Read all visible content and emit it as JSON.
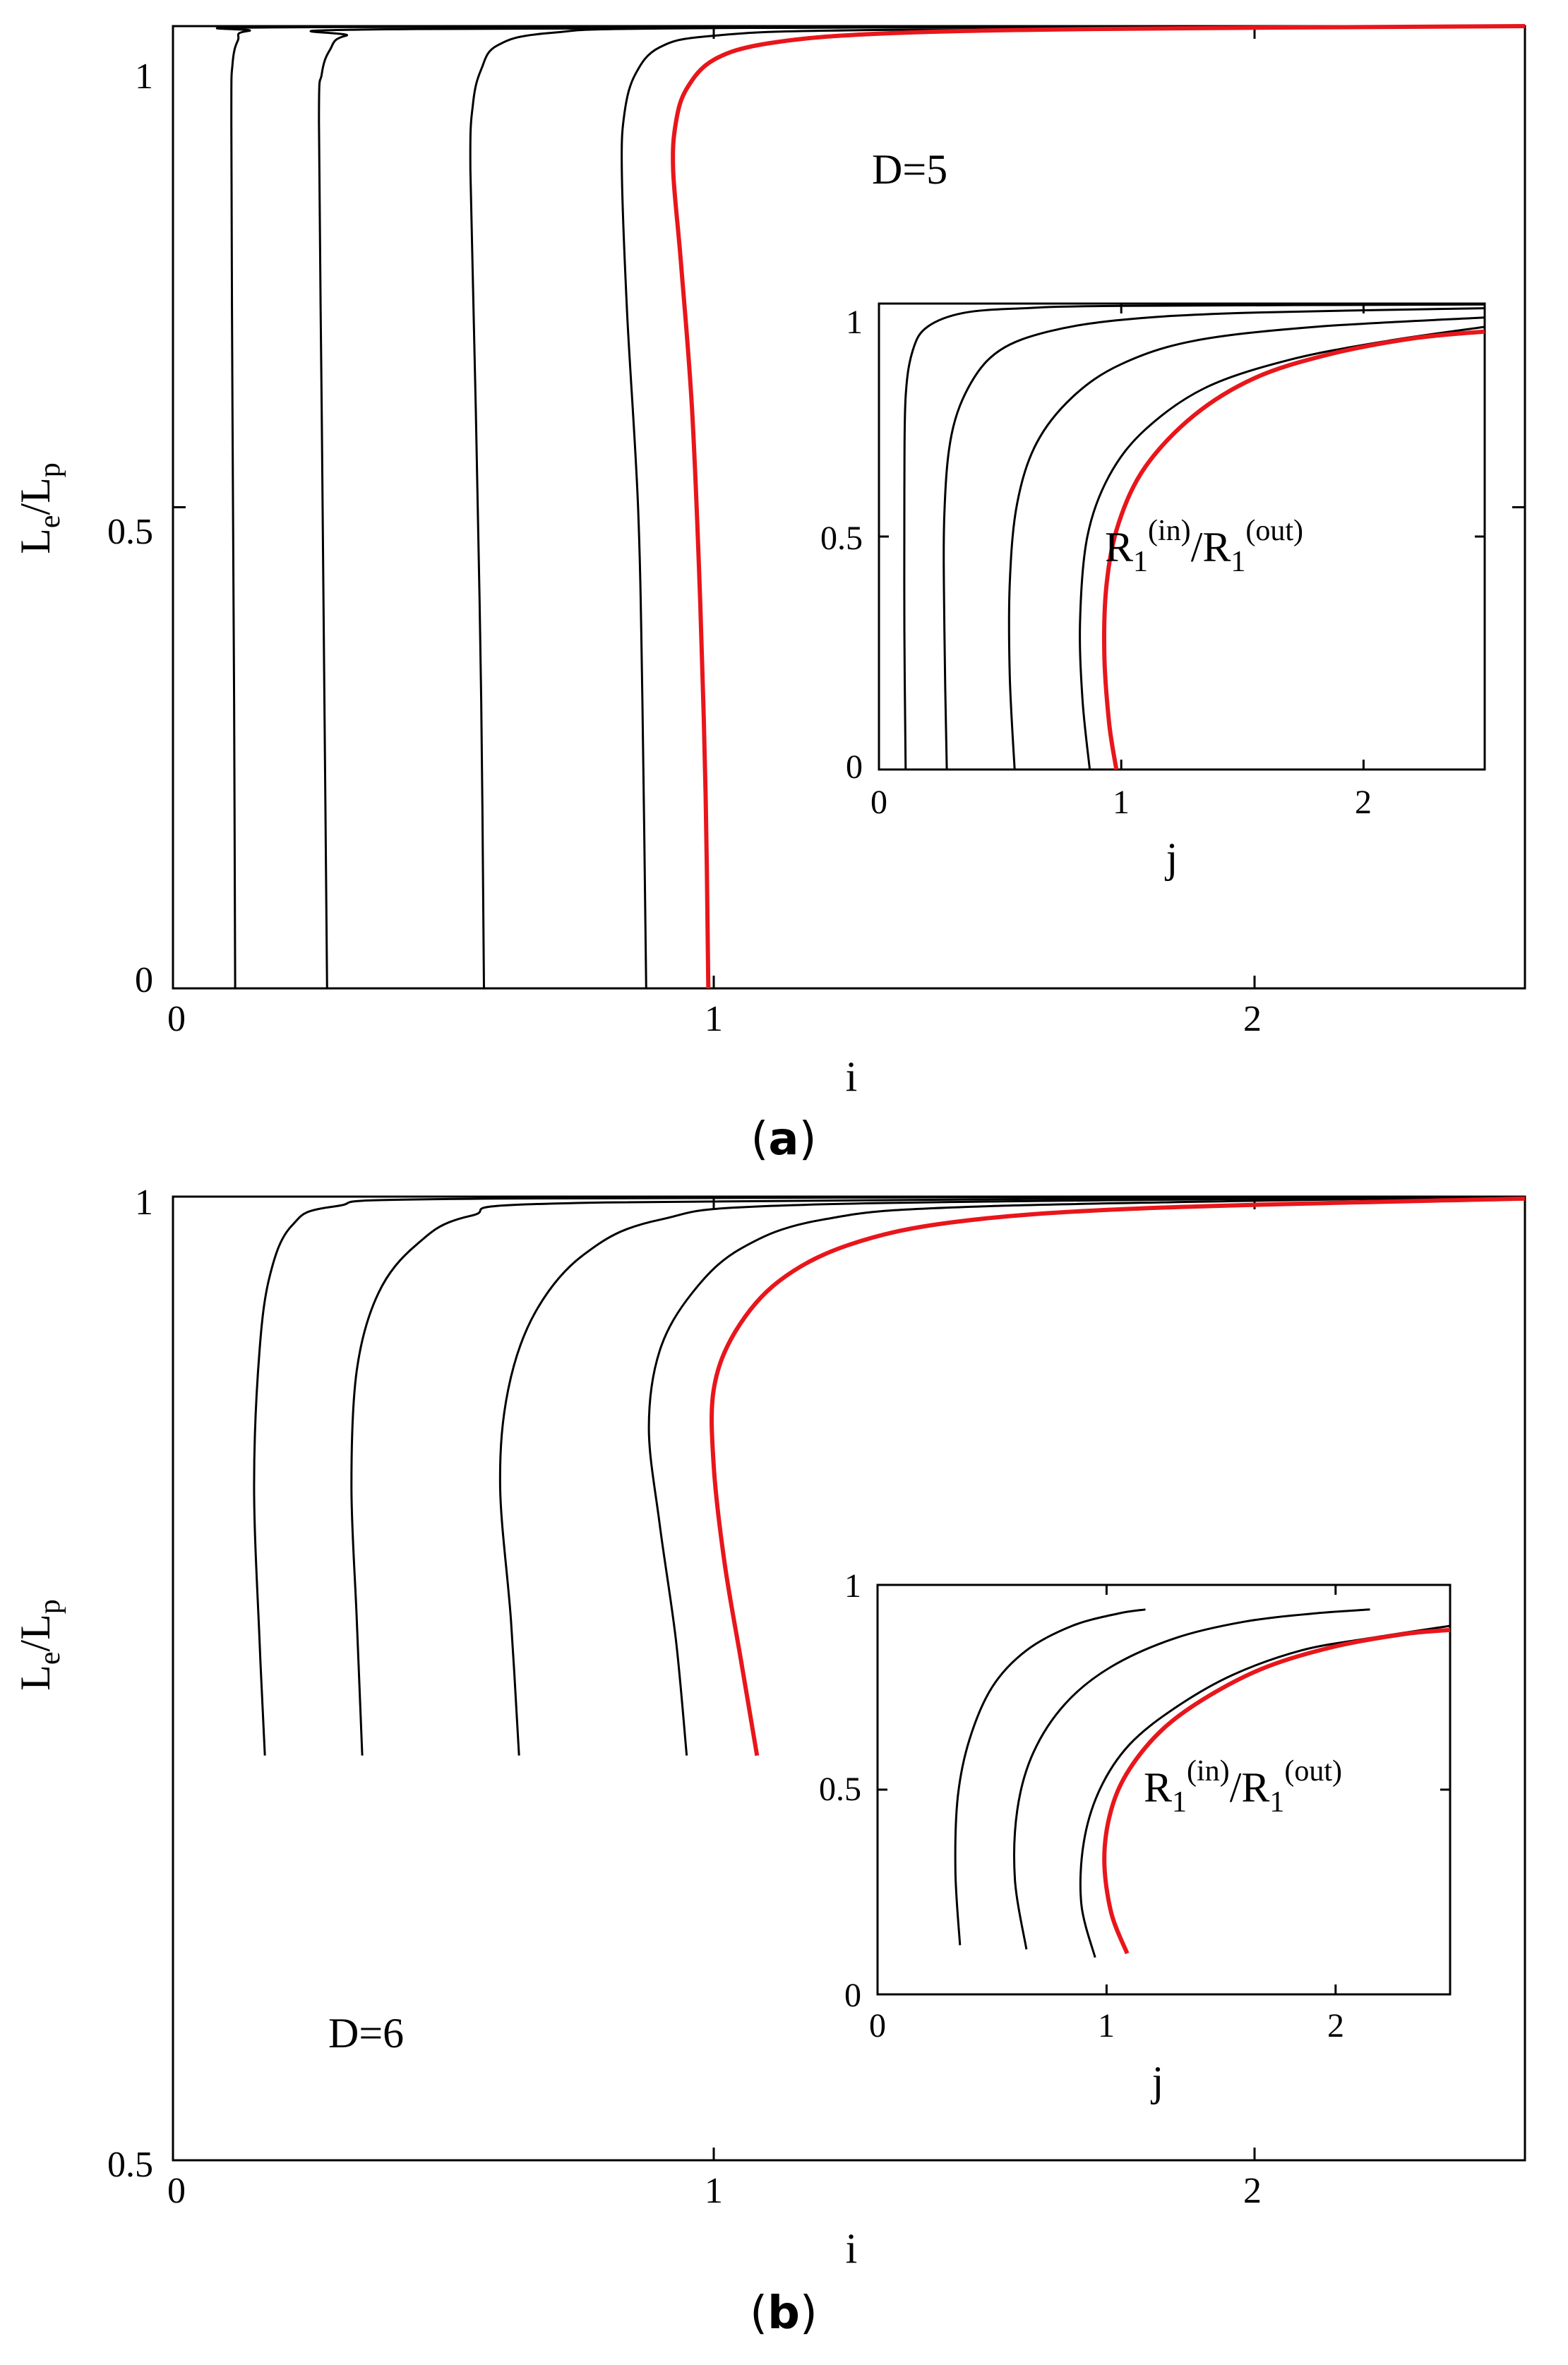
{
  "panels": [
    {
      "caption_letter": "a",
      "annotation": "D=5",
      "main": {
        "type": "line",
        "xlabel": "i",
        "ylabel_main": "L",
        "ylabel_sub1": "e",
        "ylabel_mid": "/L",
        "ylabel_sub2": "p",
        "xlim": [
          0,
          2.5
        ],
        "ylim": [
          0,
          1
        ],
        "xticks": [
          0,
          1,
          2
        ],
        "yticks": [
          0,
          0.5,
          1
        ],
        "xtick_labels": [
          "0",
          "1",
          "2"
        ],
        "ytick_labels": [
          "0",
          "0.5",
          "1"
        ],
        "grid": false,
        "series": [
          {
            "color": "#000000",
            "points": [
              [
                0.115,
                0
              ],
              [
                0.113,
                0.3
              ],
              [
                0.11,
                0.6
              ],
              [
                0.108,
                0.9
              ],
              [
                0.11,
                0.96
              ],
              [
                0.12,
                0.985
              ],
              [
                0.14,
                0.995
              ],
              [
                0.3,
                0.999
              ],
              [
                2.5,
                1
              ]
            ]
          },
          {
            "color": "#000000",
            "points": [
              [
                0.285,
                0
              ],
              [
                0.28,
                0.3
              ],
              [
                0.275,
                0.6
              ],
              [
                0.27,
                0.9
              ],
              [
                0.275,
                0.95
              ],
              [
                0.29,
                0.975
              ],
              [
                0.32,
                0.99
              ],
              [
                0.45,
                0.997
              ],
              [
                2.5,
                1
              ]
            ]
          },
          {
            "color": "#000000",
            "points": [
              [
                0.575,
                0
              ],
              [
                0.57,
                0.3
              ],
              [
                0.56,
                0.6
              ],
              [
                0.55,
                0.85
              ],
              [
                0.555,
                0.92
              ],
              [
                0.57,
                0.955
              ],
              [
                0.6,
                0.98
              ],
              [
                0.7,
                0.993
              ],
              [
                1.0,
                0.998
              ],
              [
                2.5,
                1
              ]
            ]
          },
          {
            "color": "#000000",
            "points": [
              [
                0.875,
                0
              ],
              [
                0.868,
                0.3
              ],
              [
                0.86,
                0.5
              ],
              [
                0.84,
                0.7
              ],
              [
                0.83,
                0.85
              ],
              [
                0.835,
                0.91
              ],
              [
                0.855,
                0.95
              ],
              [
                0.9,
                0.978
              ],
              [
                1.0,
                0.99
              ],
              [
                1.3,
                0.996
              ],
              [
                2.5,
                1
              ]
            ]
          },
          {
            "color": "#e8161b",
            "points": [
              [
                0.99,
                0
              ],
              [
                0.985,
                0.2
              ],
              [
                0.975,
                0.4
              ],
              [
                0.96,
                0.6
              ],
              [
                0.94,
                0.75
              ],
              [
                0.925,
                0.85
              ],
              [
                0.93,
                0.9
              ],
              [
                0.95,
                0.935
              ],
              [
                1.0,
                0.965
              ],
              [
                1.1,
                0.982
              ],
              [
                1.3,
                0.992
              ],
              [
                1.7,
                0.997
              ],
              [
                2.5,
                1
              ]
            ]
          }
        ]
      },
      "inset": {
        "type": "line",
        "xlabel": "j",
        "label_main": "R",
        "label_sub": "1",
        "label_sup1": "(in)",
        "label_mid": "/R",
        "label_sup2": "(out)",
        "xlim": [
          0,
          2.5
        ],
        "ylim": [
          0,
          1
        ],
        "xticks": [
          0,
          1,
          2
        ],
        "yticks": [
          0,
          0.5,
          1
        ],
        "xtick_labels": [
          "0",
          "1",
          "2"
        ],
        "ytick_labels": [
          "0",
          "0.5",
          "1"
        ],
        "series": [
          {
            "color": "#000000",
            "points": [
              [
                0.11,
                0
              ],
              [
                0.105,
                0.3
              ],
              [
                0.105,
                0.6
              ],
              [
                0.11,
                0.8
              ],
              [
                0.14,
                0.9
              ],
              [
                0.2,
                0.95
              ],
              [
                0.35,
                0.98
              ],
              [
                0.6,
                0.99
              ],
              [
                1.0,
                0.995
              ],
              [
                2.5,
                0.998
              ]
            ]
          },
          {
            "color": "#000000",
            "points": [
              [
                0.28,
                0
              ],
              [
                0.27,
                0.3
              ],
              [
                0.27,
                0.55
              ],
              [
                0.3,
                0.72
              ],
              [
                0.38,
                0.83
              ],
              [
                0.5,
                0.9
              ],
              [
                0.7,
                0.94
              ],
              [
                1.0,
                0.965
              ],
              [
                1.5,
                0.98
              ],
              [
                2.5,
                0.99
              ]
            ]
          },
          {
            "color": "#000000",
            "points": [
              [
                0.56,
                0
              ],
              [
                0.54,
                0.2
              ],
              [
                0.54,
                0.4
              ],
              [
                0.57,
                0.57
              ],
              [
                0.65,
                0.7
              ],
              [
                0.8,
                0.8
              ],
              [
                1.0,
                0.87
              ],
              [
                1.3,
                0.92
              ],
              [
                1.8,
                0.95
              ],
              [
                2.5,
                0.97
              ]
            ]
          },
          {
            "color": "#000000",
            "points": [
              [
                0.87,
                0
              ],
              [
                0.84,
                0.15
              ],
              [
                0.83,
                0.32
              ],
              [
                0.86,
                0.5
              ],
              [
                0.95,
                0.63
              ],
              [
                1.1,
                0.73
              ],
              [
                1.35,
                0.82
              ],
              [
                1.7,
                0.88
              ],
              [
                2.1,
                0.92
              ],
              [
                2.5,
                0.95
              ]
            ]
          },
          {
            "color": "#e8161b",
            "points": [
              [
                0.98,
                0
              ],
              [
                0.95,
                0.1
              ],
              [
                0.93,
                0.25
              ],
              [
                0.94,
                0.4
              ],
              [
                0.99,
                0.53
              ],
              [
                1.1,
                0.65
              ],
              [
                1.3,
                0.76
              ],
              [
                1.55,
                0.84
              ],
              [
                1.85,
                0.89
              ],
              [
                2.2,
                0.925
              ],
              [
                2.5,
                0.94
              ]
            ]
          }
        ]
      }
    },
    {
      "caption_letter": "b",
      "annotation": "D=6",
      "main": {
        "type": "line",
        "xlabel": "i",
        "ylabel_main": "L",
        "ylabel_sub1": "e",
        "ylabel_mid": "/L",
        "ylabel_sub2": "p",
        "xlim": [
          0,
          2.5
        ],
        "ylim": [
          0.5,
          1
        ],
        "xticks": [
          0,
          1,
          2
        ],
        "yticks": [
          0.5,
          1
        ],
        "xtick_labels": [
          "0",
          "1",
          "2"
        ],
        "ytick_labels": [
          "0.5",
          "1"
        ],
        "grid": false,
        "series": [
          {
            "color": "#000000",
            "points": [
              [
                0.17,
                0.71
              ],
              [
                0.16,
                0.77
              ],
              [
                0.15,
                0.85
              ],
              [
                0.16,
                0.92
              ],
              [
                0.18,
                0.96
              ],
              [
                0.22,
                0.985
              ],
              [
                0.3,
                0.995
              ],
              [
                0.6,
                0.999
              ],
              [
                2.5,
                1
              ]
            ]
          },
          {
            "color": "#000000",
            "points": [
              [
                0.35,
                0.71
              ],
              [
                0.34,
                0.78
              ],
              [
                0.33,
                0.85
              ],
              [
                0.34,
                0.91
              ],
              [
                0.38,
                0.95
              ],
              [
                0.45,
                0.975
              ],
              [
                0.55,
                0.99
              ],
              [
                0.8,
                0.997
              ],
              [
                2.5,
                1
              ]
            ]
          },
          {
            "color": "#000000",
            "points": [
              [
                0.64,
                0.71
              ],
              [
                0.625,
                0.78
              ],
              [
                0.605,
                0.85
              ],
              [
                0.62,
                0.9
              ],
              [
                0.67,
                0.94
              ],
              [
                0.76,
                0.97
              ],
              [
                0.9,
                0.988
              ],
              [
                1.2,
                0.996
              ],
              [
                2.5,
                1
              ]
            ]
          },
          {
            "color": "#000000",
            "points": [
              [
                0.95,
                0.71
              ],
              [
                0.93,
                0.77
              ],
              [
                0.9,
                0.83
              ],
              [
                0.88,
                0.88
              ],
              [
                0.9,
                0.92
              ],
              [
                0.96,
                0.95
              ],
              [
                1.05,
                0.973
              ],
              [
                1.2,
                0.988
              ],
              [
                1.5,
                0.995
              ],
              [
                2.5,
                1
              ]
            ]
          },
          {
            "color": "#e8161b",
            "points": [
              [
                1.08,
                0.71
              ],
              [
                1.05,
                0.76
              ],
              [
                1.02,
                0.81
              ],
              [
                1.0,
                0.86
              ],
              [
                1.0,
                0.9
              ],
              [
                1.04,
                0.93
              ],
              [
                1.12,
                0.956
              ],
              [
                1.25,
                0.975
              ],
              [
                1.45,
                0.987
              ],
              [
                1.8,
                0.994
              ],
              [
                2.5,
                0.999
              ]
            ]
          }
        ]
      },
      "inset": {
        "type": "line",
        "xlabel": "j",
        "label_main": "R",
        "label_sub": "1",
        "label_sup1": "(in)",
        "label_mid": "/R",
        "label_sup2": "(out)",
        "xlim": [
          0,
          2.5
        ],
        "ylim": [
          0,
          1
        ],
        "xticks": [
          0,
          1,
          2
        ],
        "yticks": [
          0,
          0.5,
          1
        ],
        "xtick_labels": [
          "0",
          "1",
          "2"
        ],
        "ytick_labels": [
          "0",
          "0.5",
          "1"
        ],
        "series": [
          {
            "color": "#000000",
            "points": [
              [
                0.36,
                0.12
              ],
              [
                0.34,
                0.3
              ],
              [
                0.35,
                0.48
              ],
              [
                0.4,
                0.62
              ],
              [
                0.5,
                0.75
              ],
              [
                0.65,
                0.84
              ],
              [
                0.85,
                0.9
              ],
              [
                1.05,
                0.93
              ],
              [
                1.17,
                0.94
              ]
            ]
          },
          {
            "color": "#000000",
            "points": [
              [
                0.65,
                0.11
              ],
              [
                0.6,
                0.28
              ],
              [
                0.61,
                0.45
              ],
              [
                0.68,
                0.59
              ],
              [
                0.82,
                0.71
              ],
              [
                1.02,
                0.8
              ],
              [
                1.3,
                0.87
              ],
              [
                1.6,
                0.91
              ],
              [
                1.9,
                0.93
              ],
              [
                2.15,
                0.94
              ]
            ]
          },
          {
            "color": "#000000",
            "points": [
              [
                0.95,
                0.09
              ],
              [
                0.89,
                0.22
              ],
              [
                0.9,
                0.37
              ],
              [
                0.97,
                0.5
              ],
              [
                1.1,
                0.61
              ],
              [
                1.3,
                0.7
              ],
              [
                1.55,
                0.78
              ],
              [
                1.85,
                0.84
              ],
              [
                2.15,
                0.87
              ],
              [
                2.5,
                0.9
              ]
            ]
          },
          {
            "color": "#e8161b",
            "points": [
              [
                1.09,
                0.1
              ],
              [
                1.02,
                0.2
              ],
              [
                0.99,
                0.33
              ],
              [
                1.02,
                0.45
              ],
              [
                1.1,
                0.55
              ],
              [
                1.25,
                0.65
              ],
              [
                1.45,
                0.73
              ],
              [
                1.7,
                0.8
              ],
              [
                2.0,
                0.85
              ],
              [
                2.3,
                0.88
              ],
              [
                2.5,
                0.89
              ]
            ]
          }
        ]
      }
    }
  ]
}
